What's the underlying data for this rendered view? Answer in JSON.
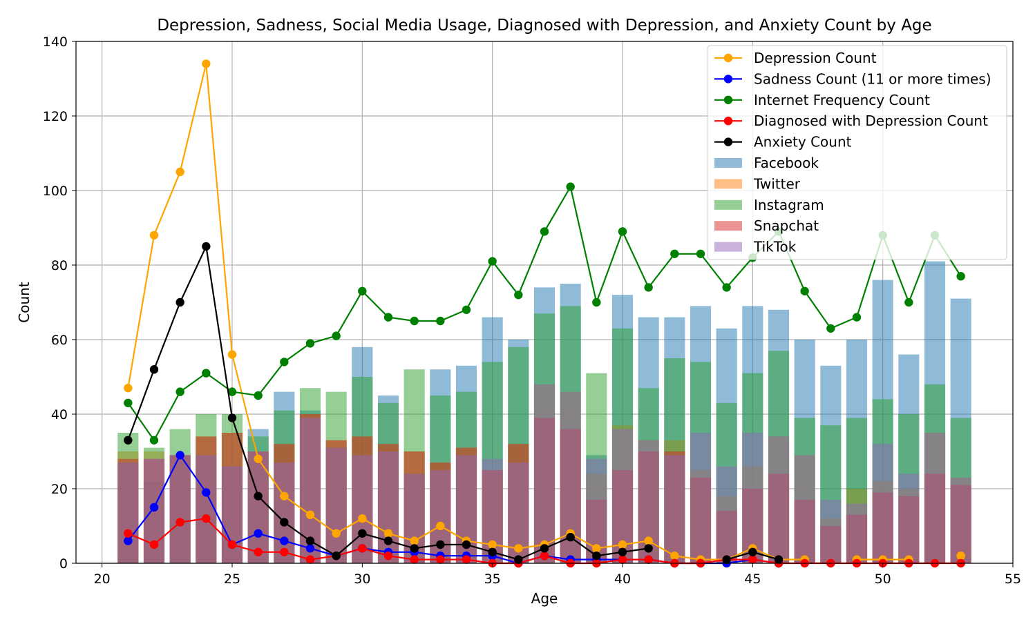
{
  "chart_data": {
    "type": "bar",
    "title": "Depression, Sadness, Social Media Usage, Diagnosed with Depression, and Anxiety Count by Age",
    "xlabel": "Age",
    "ylabel": "Count",
    "xlim": [
      19,
      55
    ],
    "ylim": [
      0,
      140
    ],
    "xticks": [
      20,
      25,
      30,
      35,
      40,
      45,
      50,
      55
    ],
    "yticks": [
      0,
      20,
      40,
      60,
      80,
      100,
      120,
      140
    ],
    "grid": true,
    "legend_position": "top-right",
    "x": [
      21,
      22,
      23,
      24,
      25,
      26,
      27,
      28,
      29,
      30,
      31,
      32,
      33,
      34,
      35,
      36,
      37,
      38,
      39,
      40,
      41,
      42,
      43,
      44,
      45,
      46,
      47,
      48,
      49,
      50,
      51,
      52,
      53
    ],
    "bar_series": [
      {
        "name": "Facebook",
        "color": "#1f77b4",
        "values": [
          27,
          22,
          29,
          29,
          26,
          36,
          46,
          41,
          31,
          58,
          45,
          24,
          52,
          53,
          66,
          60,
          74,
          75,
          29,
          72,
          66,
          66,
          69,
          63,
          69,
          68,
          60,
          53,
          60,
          76,
          56,
          81,
          71
        ]
      },
      {
        "name": "Twitter",
        "color": "#ff7f0e",
        "values": [
          30,
          30,
          29,
          34,
          35,
          30,
          32,
          40,
          33,
          34,
          32,
          30,
          27,
          31,
          25,
          32,
          48,
          46,
          24,
          37,
          33,
          33,
          25,
          18,
          26,
          34,
          29,
          12,
          20,
          22,
          20,
          35,
          23
        ]
      },
      {
        "name": "Instagram",
        "color": "#2ca02c",
        "values": [
          35,
          31,
          36,
          40,
          40,
          34,
          41,
          47,
          46,
          50,
          43,
          52,
          45,
          46,
          54,
          58,
          67,
          69,
          51,
          63,
          47,
          55,
          54,
          43,
          51,
          57,
          39,
          37,
          39,
          44,
          40,
          48,
          39
        ]
      },
      {
        "name": "Snapchat",
        "color": "#d62728",
        "values": [
          28,
          28,
          29,
          34,
          35,
          30,
          32,
          40,
          33,
          34,
          32,
          30,
          27,
          31,
          25,
          32,
          39,
          36,
          17,
          25,
          30,
          30,
          23,
          14,
          20,
          24,
          17,
          10,
          13,
          19,
          18,
          24,
          21
        ]
      },
      {
        "name": "TikTok",
        "color": "#9467bd",
        "values": [
          27,
          28,
          29,
          29,
          26,
          30,
          27,
          39,
          31,
          29,
          30,
          24,
          25,
          29,
          28,
          27,
          48,
          46,
          28,
          36,
          33,
          29,
          35,
          26,
          35,
          34,
          29,
          17,
          16,
          32,
          24,
          35,
          23
        ]
      }
    ],
    "line_series": [
      {
        "name": "Depression Count",
        "color": "#ffa500",
        "values": [
          47,
          88,
          105,
          134,
          56,
          28,
          18,
          13,
          8,
          12,
          8,
          6,
          10,
          6,
          5,
          4,
          5,
          8,
          4,
          5,
          6,
          2,
          1,
          1,
          4,
          1,
          1,
          null,
          1,
          1,
          1,
          null,
          2
        ]
      },
      {
        "name": "Sadness Count (11 or more times)",
        "color": "#0000ff",
        "values": [
          6,
          15,
          29,
          19,
          5,
          8,
          6,
          4,
          2,
          4,
          3,
          3,
          2,
          2,
          2,
          0,
          2,
          1,
          1,
          1,
          1,
          0,
          0,
          0,
          1,
          0,
          null,
          null,
          null,
          null,
          null,
          null,
          null
        ]
      },
      {
        "name": "Internet Frequency Count",
        "color": "#008000",
        "values": [
          43,
          33,
          46,
          51,
          46,
          45,
          54,
          59,
          61,
          73,
          66,
          65,
          65,
          68,
          81,
          72,
          89,
          101,
          70,
          89,
          74,
          83,
          83,
          74,
          82,
          89,
          73,
          63,
          66,
          88,
          70,
          88,
          77
        ]
      },
      {
        "name": "Diagnosed with Depression Count",
        "color": "#ff0000",
        "values": [
          8,
          5,
          11,
          12,
          5,
          3,
          3,
          1,
          2,
          4,
          2,
          1,
          1,
          1,
          0,
          0,
          2,
          0,
          0,
          1,
          1,
          0,
          0,
          1,
          1,
          0,
          0,
          0,
          0,
          0,
          0,
          0,
          0
        ]
      },
      {
        "name": "Anxiety Count",
        "color": "#000000",
        "values": [
          33,
          52,
          70,
          85,
          39,
          18,
          11,
          6,
          2,
          8,
          6,
          4,
          5,
          5,
          3,
          1,
          4,
          7,
          2,
          3,
          4,
          null,
          null,
          1,
          3,
          1,
          null,
          null,
          null,
          null,
          null,
          null,
          null
        ]
      }
    ]
  }
}
